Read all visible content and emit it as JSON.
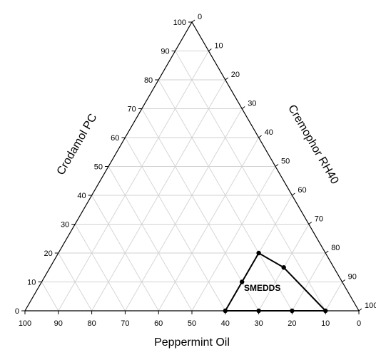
{
  "chart_data": {
    "type": "scatter",
    "subtype": "ternary",
    "axes": {
      "bottom": {
        "label": "Peppermint Oil",
        "ticks": [
          100,
          90,
          80,
          70,
          60,
          50,
          40,
          30,
          20,
          10,
          0
        ]
      },
      "left": {
        "label": "Crodamol PC",
        "ticks": [
          0,
          10,
          20,
          30,
          40,
          50,
          60,
          70,
          80,
          90,
          100
        ]
      },
      "right": {
        "label": "Cremophor RH40",
        "ticks": [
          0,
          10,
          20,
          30,
          40,
          50,
          60,
          70,
          80,
          90,
          100
        ]
      }
    },
    "grid": true,
    "region_label": "SMEDDS",
    "points": [
      {
        "peppermint_oil": 40,
        "crodamol_pc": 0,
        "cremophor_rh40": 60
      },
      {
        "peppermint_oil": 30,
        "crodamol_pc": 0,
        "cremophor_rh40": 70
      },
      {
        "peppermint_oil": 20,
        "crodamol_pc": 0,
        "cremophor_rh40": 80
      },
      {
        "peppermint_oil": 10,
        "crodamol_pc": 0,
        "cremophor_rh40": 90
      },
      {
        "peppermint_oil": 15,
        "crodamol_pc": 15,
        "cremophor_rh40": 70
      },
      {
        "peppermint_oil": 20,
        "crodamol_pc": 20,
        "cremophor_rh40": 60
      },
      {
        "peppermint_oil": 30,
        "crodamol_pc": 10,
        "cremophor_rh40": 60
      }
    ],
    "boundary_order": [
      0,
      1,
      2,
      3,
      4,
      5,
      6,
      0
    ]
  }
}
